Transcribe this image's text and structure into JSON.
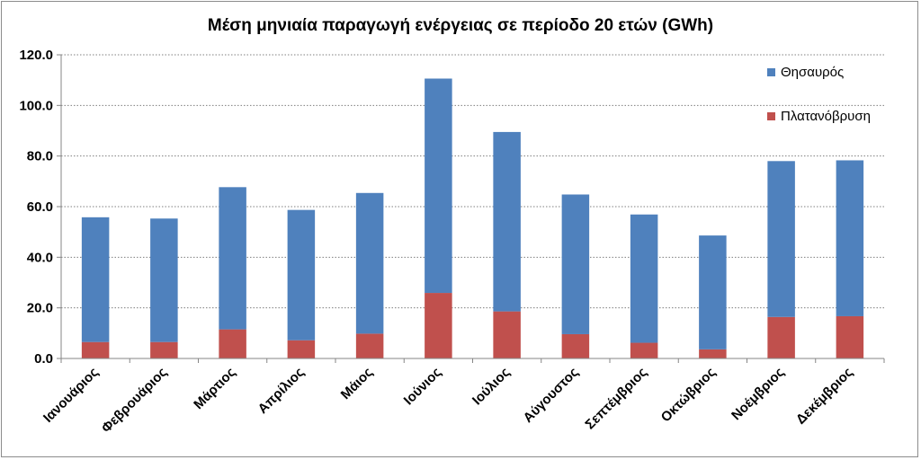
{
  "chart_data": {
    "type": "bar",
    "stacked": true,
    "title": "Μέση μηνιαία παραγωγή ενέργειας σε περίοδο  20 ετών (GWh)",
    "xlabel": "",
    "ylabel": "",
    "ylim": [
      0,
      120
    ],
    "yticks": [
      "0.0",
      "20.0",
      "40.0",
      "60.0",
      "80.0",
      "100.0",
      "120.0"
    ],
    "grid": true,
    "legend_position": "right",
    "categories": [
      "Ιανουάριος",
      "Φεβρουάριος",
      "Μάρτιος",
      "Απρίλιος",
      "Μάιος",
      "Ιούνιος",
      "Ιούλιος",
      "Αύγουστος",
      "Σεπτέμβριος",
      "Οκτώβριος",
      "Νοέμβριος",
      "Δεκέμβριος"
    ],
    "series": [
      {
        "name": "Πλατανόβρυση",
        "color": "#c0504d",
        "values": [
          6.5,
          6.5,
          11.5,
          7.2,
          9.8,
          25.9,
          18.6,
          9.6,
          6.2,
          3.6,
          16.4,
          16.7
        ]
      },
      {
        "name": "Θησαυρός",
        "color": "#4f81bd",
        "values": [
          49.3,
          48.8,
          56.2,
          51.5,
          55.6,
          84.7,
          70.9,
          55.2,
          50.7,
          45.0,
          61.6,
          61.6
        ]
      }
    ],
    "legend_order": [
      "Θησαυρός",
      "Πλατανόβρυση"
    ]
  }
}
